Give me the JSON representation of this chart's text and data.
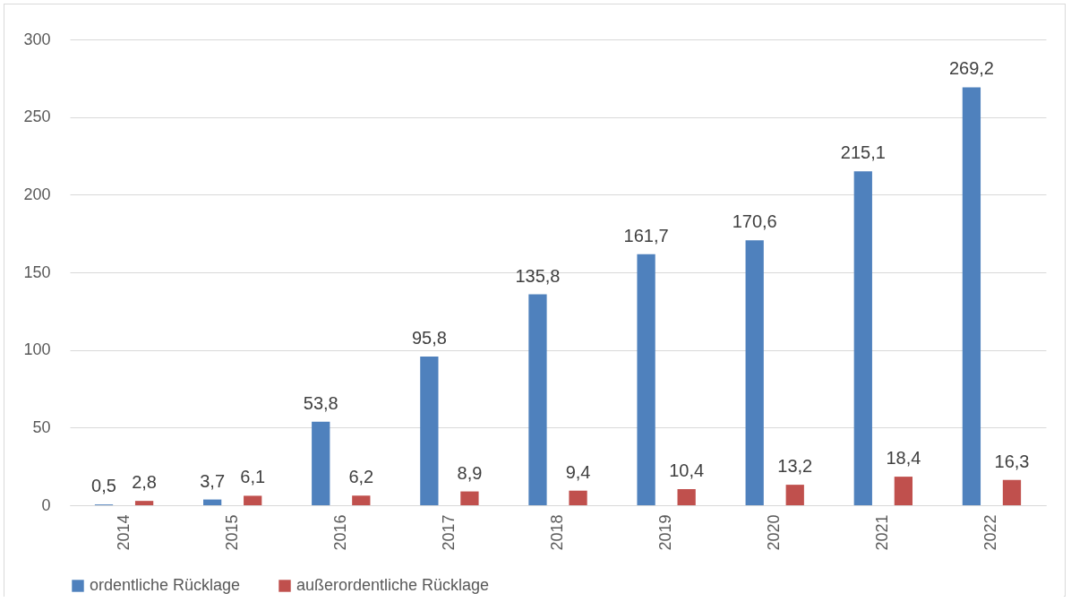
{
  "chart_data": {
    "type": "bar",
    "categories": [
      "2014",
      "2015",
      "2016",
      "2017",
      "2018",
      "2019",
      "2020",
      "2021",
      "2022"
    ],
    "series": [
      {
        "name": "ordentliche Rücklage",
        "color": "#4f81bd",
        "values": [
          0.5,
          3.7,
          53.8,
          95.8,
          135.8,
          161.7,
          170.6,
          215.1,
          269.2
        ],
        "value_labels": [
          "0,5",
          "3,7",
          "53,8",
          "95,8",
          "135,8",
          "161,7",
          "170,6",
          "215,1",
          "269,2"
        ]
      },
      {
        "name": "außerordentliche Rücklage",
        "color": "#c0504d",
        "values": [
          2.8,
          6.1,
          6.2,
          8.9,
          9.4,
          10.4,
          13.2,
          18.4,
          16.3
        ],
        "value_labels": [
          "2,8",
          "6,1",
          "6,2",
          "8,9",
          "9,4",
          "10,4",
          "13,2",
          "18,4",
          "16,3"
        ]
      }
    ],
    "ylim": [
      0,
      300
    ],
    "yticks": [
      0,
      50,
      100,
      150,
      200,
      250,
      300
    ],
    "grid": "y",
    "legend": "bottom"
  }
}
